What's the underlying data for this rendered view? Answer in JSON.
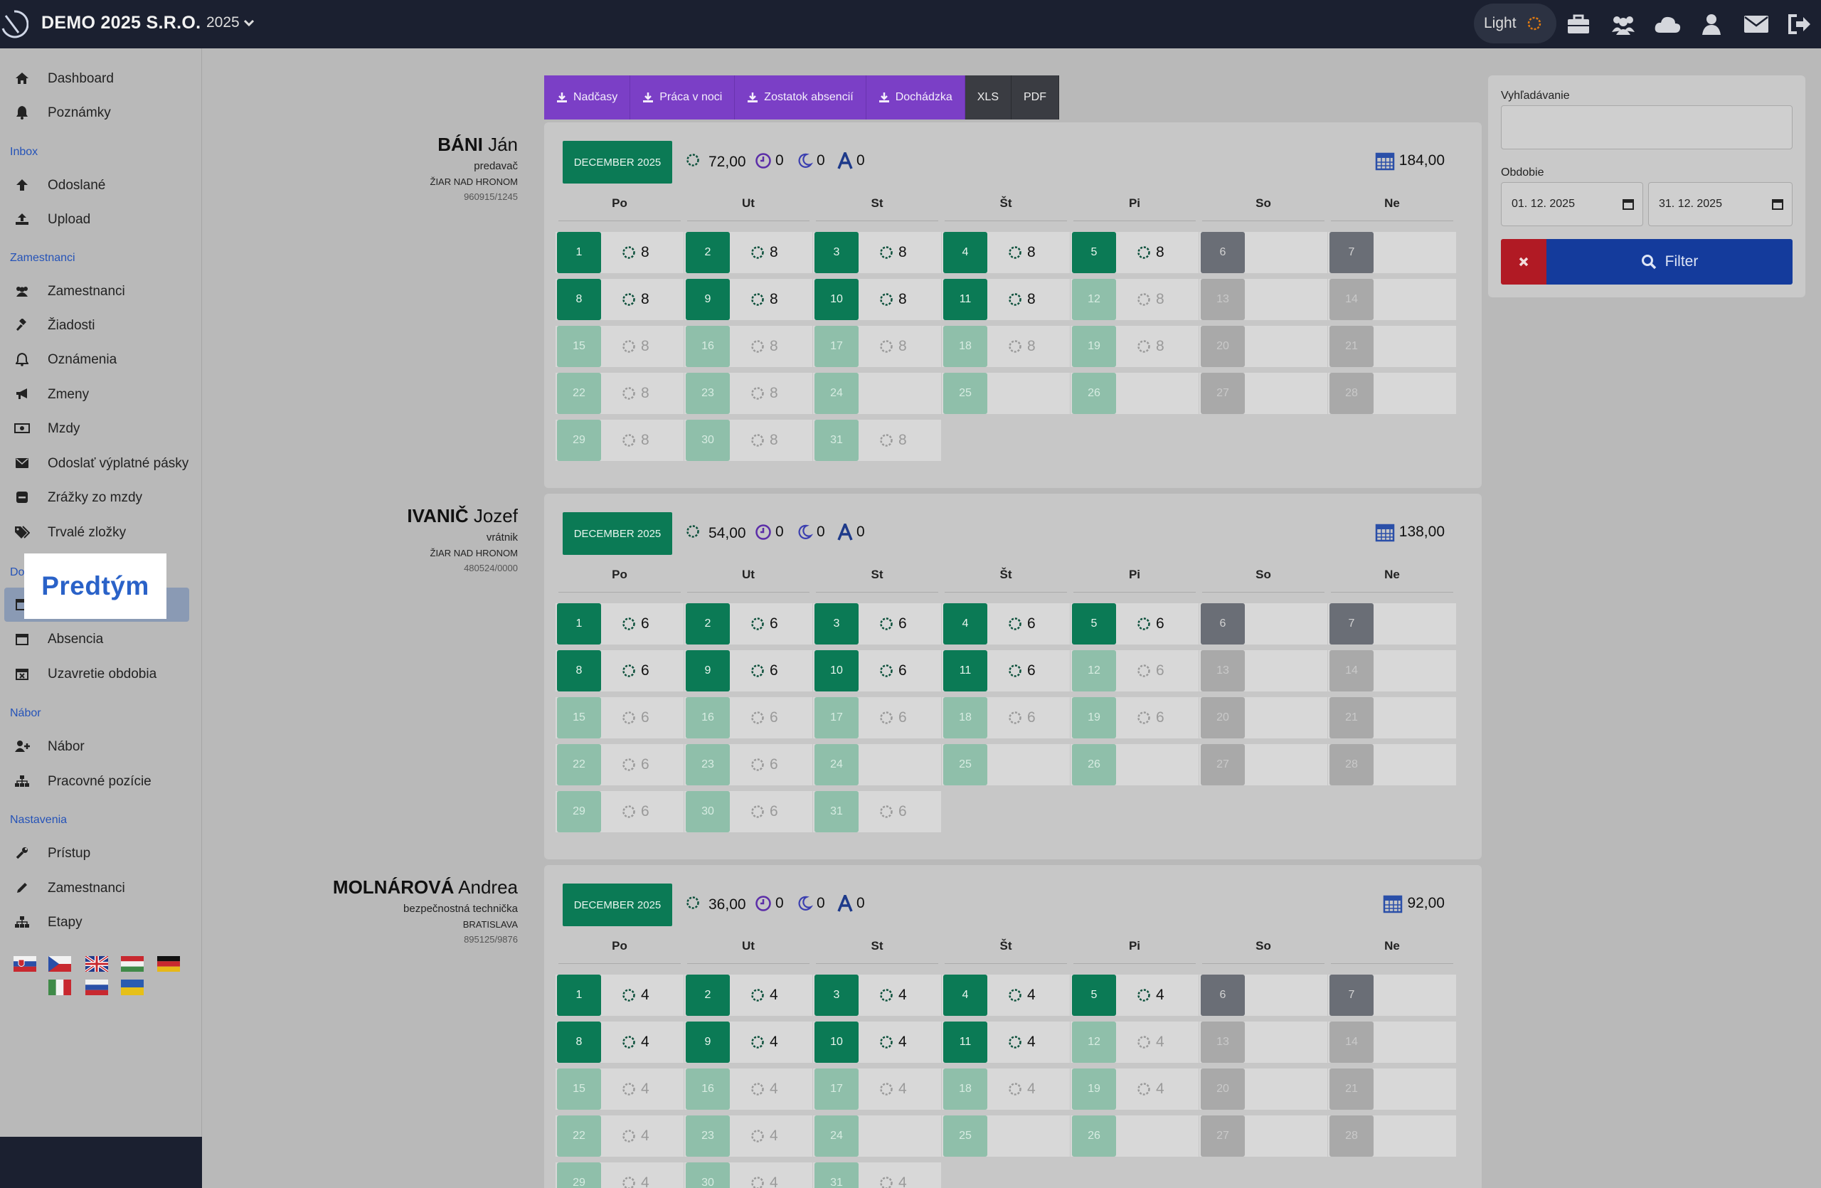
{
  "topbar": {
    "company": "DEMO 2025 S.R.O.",
    "year": "2025",
    "theme_label": "Light",
    "icons": [
      "briefcase-icon",
      "users-icon",
      "cloud-icon",
      "user-icon",
      "envelope-icon",
      "sign-out-icon"
    ]
  },
  "sidebar": {
    "items": [
      {
        "label": "Dashboard",
        "icon": "home-icon"
      },
      {
        "label": "Poznámky",
        "icon": "bell-icon"
      },
      {
        "label": "Odoslané",
        "icon": "arrow-up-icon"
      },
      {
        "label": "Upload",
        "icon": "upload-icon"
      },
      {
        "label": "Zamestnanci",
        "icon": "users-icon"
      },
      {
        "label": "Žiadosti",
        "icon": "gavel-icon"
      },
      {
        "label": "Oznámenia",
        "icon": "bell-outline-icon"
      },
      {
        "label": "Zmeny",
        "icon": "bullhorn-icon"
      },
      {
        "label": "Mzdy",
        "icon": "money-icon"
      },
      {
        "label": "Odoslať výplatné pásky",
        "icon": "envelope-icon"
      },
      {
        "label": "Zrážky zo mzdy",
        "icon": "minus-square-icon"
      },
      {
        "label": "Trvalé zložky",
        "icon": "tags-icon"
      },
      {
        "label": "Absencia",
        "icon": "calendar-icon"
      },
      {
        "label": "Uzavretie obdobia",
        "icon": "calendar-x-icon"
      },
      {
        "label": "Nábor",
        "icon": "user-plus-icon"
      },
      {
        "label": "Pracovné pozície",
        "icon": "sitemap-icon"
      },
      {
        "label": "Prístup",
        "icon": "wrench-icon"
      },
      {
        "label": "Zamestnanci",
        "icon": "pencil-icon"
      },
      {
        "label": "Etapy",
        "icon": "sitemap-icon"
      }
    ],
    "sections": [
      "Inbox",
      "Zamestnanci",
      "Do",
      "Nábor",
      "Nastavenia"
    ],
    "tooltip": "Predtým",
    "flags": [
      "sk",
      "cz",
      "gb",
      "hu",
      "de",
      "it",
      "ru",
      "ua"
    ]
  },
  "actions": {
    "nadcasy": "Nadčasy",
    "praca_v_noci": "Práca v noci",
    "zostatok": "Zostatok absencií",
    "dochadzka": "Dochádzka",
    "xls": "XLS",
    "pdf": "PDF"
  },
  "weekdays": [
    "Po",
    "Ut",
    "St",
    "Št",
    "Pi",
    "So",
    "Ne"
  ],
  "employees": [
    {
      "surname": "BÁNI",
      "firstname": "Ján",
      "job": "predavač",
      "city": "ŽIAR NAD HRONOM",
      "id": "960915/1245",
      "month": "DECEMBER 2025",
      "hours": "72,00",
      "overtime": "0",
      "night": "0",
      "absence": "0",
      "total": "184,00",
      "daily": "8"
    },
    {
      "surname": "IVANIČ",
      "firstname": "Jozef",
      "job": "vrátnik",
      "city": "ŽIAR NAD HRONOM",
      "id": "480524/0000",
      "month": "DECEMBER 2025",
      "hours": "54,00",
      "overtime": "0",
      "night": "0",
      "absence": "0",
      "total": "138,00",
      "daily": "6"
    },
    {
      "surname": "MOLNÁROVÁ",
      "firstname": "Andrea",
      "job": "bezpečnostná technička",
      "city": "BRATISLAVA",
      "id": "895125/9876",
      "month": "DECEMBER 2025",
      "hours": "36,00",
      "overtime": "0",
      "night": "0",
      "absence": "0",
      "total": "92,00",
      "daily": "4"
    }
  ],
  "filter": {
    "search_label": "Vyhľadávanie",
    "search_value": "",
    "period_label": "Obdobie",
    "date_from": "01. 12. 2025",
    "date_to": "31. 12. 2025",
    "filter_button": "Filter"
  },
  "colors": {
    "worked": "#0b7a55",
    "accent": "#7b3fc6",
    "filter": "#143b9c",
    "clear": "#b11a24"
  }
}
